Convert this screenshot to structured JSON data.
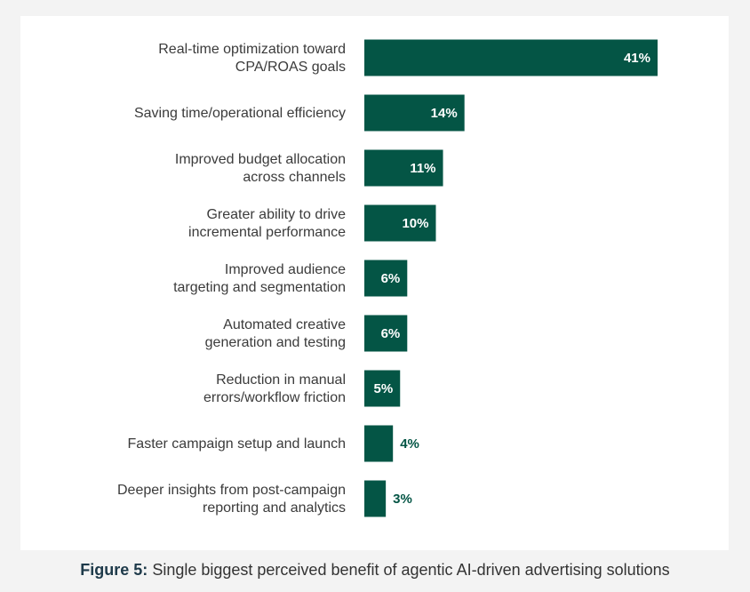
{
  "chart_data": {
    "type": "bar",
    "orientation": "horizontal",
    "categories": [
      [
        "Real-time optimization toward",
        "CPA/ROAS goals"
      ],
      [
        "Saving time/operational efficiency"
      ],
      [
        "Improved budget allocation",
        "across channels"
      ],
      [
        "Greater ability to drive",
        "incremental performance"
      ],
      [
        "Improved audience",
        "targeting and segmentation"
      ],
      [
        "Automated creative",
        "generation and testing"
      ],
      [
        "Reduction in manual",
        "errors/workflow friction"
      ],
      [
        "Faster campaign setup and launch"
      ],
      [
        "Deeper insights from post-campaign",
        "reporting and analytics"
      ]
    ],
    "values": [
      41,
      14,
      11,
      10,
      6,
      6,
      5,
      4,
      3
    ],
    "value_labels": [
      "41%",
      "14%",
      "11%",
      "10%",
      "6%",
      "6%",
      "5%",
      "4%",
      "3%"
    ],
    "xlim": [
      0,
      41
    ],
    "grid": false,
    "legend": "none",
    "colors": {
      "bar": "#045545",
      "label_inside": "#ffffff",
      "label_outside": "#045545",
      "category_text": "#3b3b3b"
    }
  },
  "caption": {
    "label": "Figure 5:",
    "text": "Single biggest perceived benefit of agentic AI-driven advertising solutions"
  }
}
